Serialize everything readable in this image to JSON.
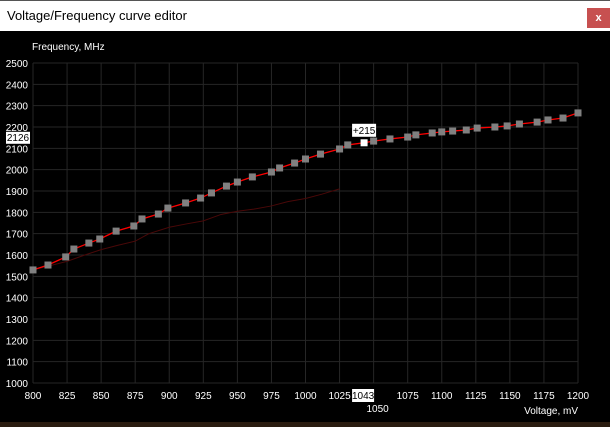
{
  "window": {
    "title": "Voltage/Frequency curve editor",
    "close_label": "x"
  },
  "colors": {
    "curve": "#ff0000",
    "baseline_curve": "#4a0808",
    "point": "#808080",
    "selected_point": "#ffffff",
    "grid": "#262626",
    "close_button": "#c75050"
  },
  "chart_data": {
    "type": "line",
    "xlabel": "Voltage, mV",
    "ylabel": "Frequency, MHz",
    "xlim": [
      800,
      1200
    ],
    "ylim": [
      1000,
      2500
    ],
    "x_ticks": [
      "800",
      "825",
      "850",
      "875",
      "900",
      "925",
      "950",
      "975",
      "1000",
      "1025",
      "1050",
      "1075",
      "1100",
      "1125",
      "1150",
      "1175",
      "1200"
    ],
    "y_ticks": [
      "1000",
      "1100",
      "1200",
      "1300",
      "1400",
      "1500",
      "1600",
      "1700",
      "1800",
      "1900",
      "2000",
      "2100",
      "2200",
      "2300",
      "2400",
      "2500"
    ],
    "grid": true,
    "series": [
      {
        "role": "curve",
        "x": [
          800,
          811,
          824,
          830,
          841,
          849,
          861,
          874,
          880,
          892,
          899,
          912,
          923,
          931,
          942,
          950,
          961,
          975,
          981,
          992,
          1000,
          1011,
          1025,
          1031,
          1043,
          1050,
          1062,
          1075,
          1081,
          1093,
          1100,
          1108,
          1118,
          1126,
          1139,
          1148,
          1157,
          1170,
          1178,
          1189,
          1200
        ],
        "y": [
          1530,
          1553,
          1591,
          1628,
          1656,
          1675,
          1712,
          1736,
          1769,
          1792,
          1820,
          1844,
          1867,
          1891,
          1923,
          1942,
          1966,
          1989,
          2008,
          2031,
          2050,
          2073,
          2097,
          2116,
          2126,
          2134,
          2144,
          2153,
          2163,
          2172,
          2177,
          2181,
          2186,
          2195,
          2200,
          2205,
          2214,
          2223,
          2233,
          2242,
          2266
        ]
      },
      {
        "role": "baseline",
        "x": [
          800,
          825,
          838,
          850,
          862,
          875,
          885,
          900,
          912,
          925,
          938,
          950,
          962,
          975,
          987,
          1000,
          1012,
          1025
        ],
        "y": [
          1530,
          1570,
          1600,
          1625,
          1645,
          1665,
          1700,
          1730,
          1745,
          1760,
          1790,
          1805,
          1815,
          1830,
          1850,
          1865,
          1885,
          1910
        ]
      }
    ],
    "selected_point": {
      "voltage": 1043,
      "frequency": 2126,
      "offset_label": "+215",
      "voltage_label": "1043",
      "frequency_label": "2126"
    }
  }
}
